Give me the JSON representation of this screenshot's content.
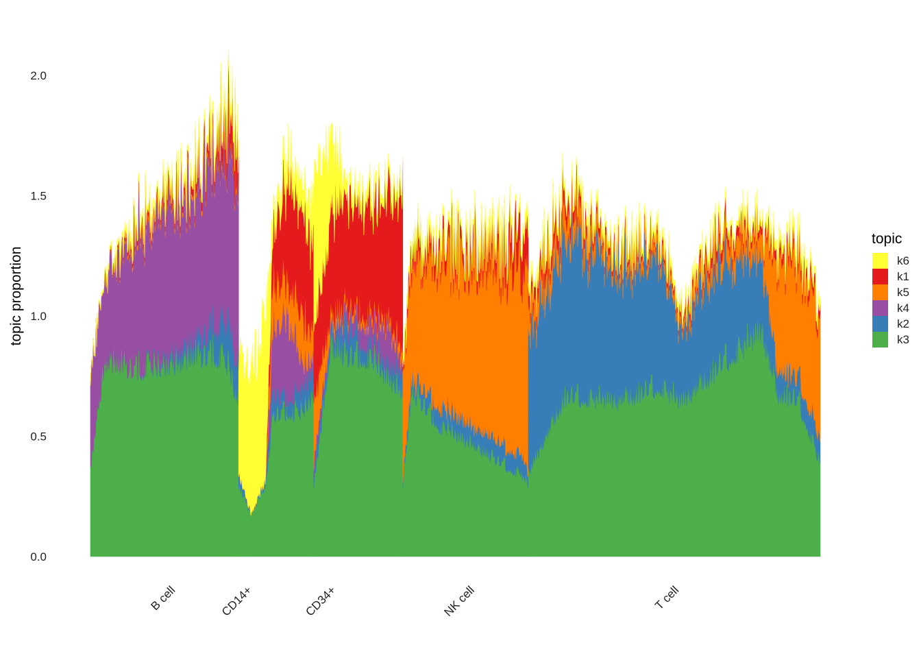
{
  "chart_data": {
    "type": "area",
    "subtype": "stacked-per-cell-columns",
    "xlabel": "",
    "ylabel": "topic proportion",
    "ylim": [
      0,
      2.2
    ],
    "yticks": [
      0.0,
      0.5,
      1.0,
      1.5,
      2.0
    ],
    "ytick_labels": [
      "0.0",
      "0.5",
      "1.0",
      "1.5",
      "2.0"
    ],
    "grid": false,
    "legend": {
      "title": "topic",
      "position": "right"
    },
    "stack_order_bottom_to_top": [
      "k3",
      "k2",
      "k4",
      "k5",
      "k1",
      "k6"
    ],
    "legend_order": [
      "k6",
      "k1",
      "k5",
      "k4",
      "k2",
      "k3"
    ],
    "colors": {
      "k6": "#FFFF33",
      "k1": "#E41A1C",
      "k5": "#FF7F00",
      "k4": "#984EA3",
      "k2": "#377EB8",
      "k3": "#4DAF4A"
    },
    "groups": [
      {
        "name": "B cell",
        "start": 0.0,
        "end": 0.203,
        "label_pos": 0.1,
        "anchors": [
          {
            "x": 0.0,
            "k3": 0.38,
            "k2": 0.0,
            "k4": 0.4,
            "k5": 0.0,
            "k1": 0.0,
            "k6": 0.0
          },
          {
            "x": 0.02,
            "k3": 0.84,
            "k2": 0.0,
            "k4": 0.35,
            "k5": 0.0,
            "k1": 0.0,
            "k6": 0.01
          },
          {
            "x": 0.06,
            "k3": 0.8,
            "k2": 0.0,
            "k4": 0.55,
            "k5": 0.02,
            "k1": 0.02,
            "k6": 0.02
          },
          {
            "x": 0.1,
            "k3": 0.8,
            "k2": 0.02,
            "k4": 0.62,
            "k5": 0.02,
            "k1": 0.02,
            "k6": 0.02
          },
          {
            "x": 0.14,
            "k3": 0.85,
            "k2": 0.06,
            "k4": 0.62,
            "k5": 0.02,
            "k1": 0.03,
            "k6": 0.02
          },
          {
            "x": 0.17,
            "k3": 0.86,
            "k2": 0.12,
            "k4": 0.72,
            "k5": 0.02,
            "k1": 0.04,
            "k6": 0.03
          },
          {
            "x": 0.19,
            "k3": 0.8,
            "k2": 0.18,
            "k4": 0.76,
            "k5": 0.02,
            "k1": 0.12,
            "k6": 0.04
          },
          {
            "x": 0.203,
            "k3": 0.62,
            "k2": 0.15,
            "k4": 0.8,
            "k5": 0.02,
            "k1": 0.12,
            "k6": 0.05
          }
        ]
      },
      {
        "name": "CD14+",
        "start": 0.203,
        "end": 0.306,
        "label_pos": 0.205,
        "anchors": [
          {
            "x": 0.203,
            "k3": 0.3,
            "k2": 0.05,
            "k4": 0.0,
            "k5": 0.0,
            "k1": 0.0,
            "k6": 0.5
          },
          {
            "x": 0.22,
            "k3": 0.18,
            "k2": 0.0,
            "k4": 0.0,
            "k5": 0.0,
            "k1": 0.0,
            "k6": 0.6
          },
          {
            "x": 0.24,
            "k3": 0.3,
            "k2": 0.02,
            "k4": 0.0,
            "k5": 0.0,
            "k1": 0.0,
            "k6": 0.65
          },
          {
            "x": 0.25,
            "k3": 0.6,
            "k2": 0.1,
            "k4": 0.25,
            "k5": 0.2,
            "k1": 0.2,
            "k6": 0.05
          },
          {
            "x": 0.27,
            "k3": 0.62,
            "k2": 0.05,
            "k4": 0.35,
            "k5": 0.15,
            "k1": 0.45,
            "k6": 0.1
          },
          {
            "x": 0.29,
            "k3": 0.6,
            "k2": 0.1,
            "k4": 0.1,
            "k5": 0.2,
            "k1": 0.4,
            "k6": 0.1
          },
          {
            "x": 0.306,
            "k3": 0.7,
            "k2": 0.1,
            "k4": 0.05,
            "k5": 0.1,
            "k1": 0.35,
            "k6": 0.15
          }
        ]
      },
      {
        "name": "CD34+",
        "start": 0.306,
        "end": 0.428,
        "label_pos": 0.32,
        "anchors": [
          {
            "x": 0.306,
            "k3": 0.3,
            "k2": 0.05,
            "k4": 0.05,
            "k5": 0.25,
            "k1": 0.3,
            "k6": 0.6
          },
          {
            "x": 0.33,
            "k3": 0.9,
            "k2": 0.05,
            "k4": 0.02,
            "k5": 0.05,
            "k1": 0.4,
            "k6": 0.3
          },
          {
            "x": 0.35,
            "k3": 0.85,
            "k2": 0.12,
            "k4": 0.05,
            "k5": 0.03,
            "k1": 0.45,
            "k6": 0.05
          },
          {
            "x": 0.38,
            "k3": 0.85,
            "k2": 0.05,
            "k4": 0.1,
            "k5": 0.03,
            "k1": 0.45,
            "k6": 0.04
          },
          {
            "x": 0.41,
            "k3": 0.75,
            "k2": 0.05,
            "k4": 0.15,
            "k5": 0.03,
            "k1": 0.52,
            "k6": 0.03
          },
          {
            "x": 0.428,
            "k3": 0.7,
            "k2": 0.1,
            "k4": 0.03,
            "k5": 0.05,
            "k1": 0.62,
            "k6": 0.02
          }
        ]
      },
      {
        "name": "NK cell",
        "start": 0.428,
        "end": 0.6,
        "label_pos": 0.51,
        "anchors": [
          {
            "x": 0.428,
            "k3": 0.3,
            "k2": 0.02,
            "k4": 0.0,
            "k5": 0.45,
            "k1": 0.02,
            "k6": 0.02
          },
          {
            "x": 0.44,
            "k3": 0.7,
            "k2": 0.05,
            "k4": 0.0,
            "k5": 0.5,
            "k1": 0.05,
            "k6": 0.02
          },
          {
            "x": 0.48,
            "k3": 0.55,
            "k2": 0.08,
            "k4": 0.0,
            "k5": 0.62,
            "k1": 0.06,
            "k6": 0.03
          },
          {
            "x": 0.52,
            "k3": 0.48,
            "k2": 0.08,
            "k4": 0.0,
            "k5": 0.7,
            "k1": 0.05,
            "k6": 0.02
          },
          {
            "x": 0.56,
            "k3": 0.4,
            "k2": 0.08,
            "k4": 0.0,
            "k5": 0.75,
            "k1": 0.08,
            "k6": 0.02
          },
          {
            "x": 0.59,
            "k3": 0.35,
            "k2": 0.08,
            "k4": 0.0,
            "k5": 0.8,
            "k1": 0.15,
            "k6": 0.02
          },
          {
            "x": 0.6,
            "k3": 0.3,
            "k2": 0.05,
            "k4": 0.0,
            "k5": 0.85,
            "k1": 0.15,
            "k6": 0.05
          }
        ]
      },
      {
        "name": "T cell",
        "start": 0.6,
        "end": 1.0,
        "label_pos": 0.79,
        "anchors": [
          {
            "x": 0.6,
            "k3": 0.35,
            "k2": 0.55,
            "k4": 0.0,
            "k5": 0.1,
            "k1": 0.05,
            "k6": 0.02
          },
          {
            "x": 0.65,
            "k3": 0.68,
            "k2": 0.7,
            "k4": 0.0,
            "k5": 0.1,
            "k1": 0.06,
            "k6": 0.02
          },
          {
            "x": 0.72,
            "k3": 0.66,
            "k2": 0.55,
            "k4": 0.0,
            "k5": 0.05,
            "k1": 0.02,
            "k6": 0.02
          },
          {
            "x": 0.78,
            "k3": 0.72,
            "k2": 0.55,
            "k4": 0.0,
            "k5": 0.05,
            "k1": 0.02,
            "k6": 0.02
          },
          {
            "x": 0.81,
            "k3": 0.65,
            "k2": 0.3,
            "k4": 0.0,
            "k5": 0.03,
            "k1": 0.02,
            "k6": 0.02
          },
          {
            "x": 0.86,
            "k3": 0.8,
            "k2": 0.45,
            "k4": 0.0,
            "k5": 0.08,
            "k1": 0.05,
            "k6": 0.02
          },
          {
            "x": 0.92,
            "k3": 0.95,
            "k2": 0.3,
            "k4": 0.0,
            "k5": 0.1,
            "k1": 0.03,
            "k6": 0.02
          },
          {
            "x": 0.94,
            "k3": 0.7,
            "k2": 0.1,
            "k4": 0.0,
            "k5": 0.45,
            "k1": 0.04,
            "k6": 0.03
          },
          {
            "x": 0.97,
            "k3": 0.65,
            "k2": 0.1,
            "k4": 0.0,
            "k5": 0.48,
            "k1": 0.04,
            "k6": 0.03
          },
          {
            "x": 1.0,
            "k3": 0.4,
            "k2": 0.1,
            "k4": 0.0,
            "k5": 0.5,
            "k1": 0.04,
            "k6": 0.03
          }
        ]
      }
    ]
  }
}
